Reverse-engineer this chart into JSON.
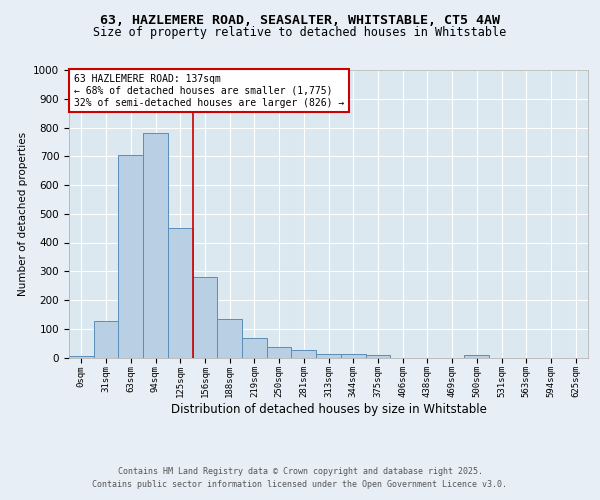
{
  "title1": "63, HAZLEMERE ROAD, SEASALTER, WHITSTABLE, CT5 4AW",
  "title2": "Size of property relative to detached houses in Whitstable",
  "xlabel": "Distribution of detached houses by size in Whitstable",
  "ylabel": "Number of detached properties",
  "footer1": "Contains HM Land Registry data © Crown copyright and database right 2025.",
  "footer2": "Contains public sector information licensed under the Open Government Licence v3.0.",
  "bin_labels": [
    "0sqm",
    "31sqm",
    "63sqm",
    "94sqm",
    "125sqm",
    "156sqm",
    "188sqm",
    "219sqm",
    "250sqm",
    "281sqm",
    "313sqm",
    "344sqm",
    "375sqm",
    "406sqm",
    "438sqm",
    "469sqm",
    "500sqm",
    "531sqm",
    "563sqm",
    "594sqm",
    "625sqm"
  ],
  "bar_values": [
    5,
    128,
    703,
    780,
    450,
    280,
    133,
    68,
    38,
    25,
    12,
    12,
    10,
    0,
    0,
    0,
    8,
    0,
    0,
    0,
    0
  ],
  "bar_color": "#b8cfe4",
  "bar_edge_color": "#5b8db8",
  "vline_x": 4.5,
  "vline_color": "#cc0000",
  "annotation_text": "63 HAZLEMERE ROAD: 137sqm\n← 68% of detached houses are smaller (1,775)\n32% of semi-detached houses are larger (826) →",
  "annotation_box_color": "#ffffff",
  "annotation_edge_color": "#cc0000",
  "ylim": [
    0,
    1000
  ],
  "yticks": [
    0,
    100,
    200,
    300,
    400,
    500,
    600,
    700,
    800,
    900,
    1000
  ],
  "bg_color": "#e8eef5",
  "plot_bg_color": "#dce8f0"
}
